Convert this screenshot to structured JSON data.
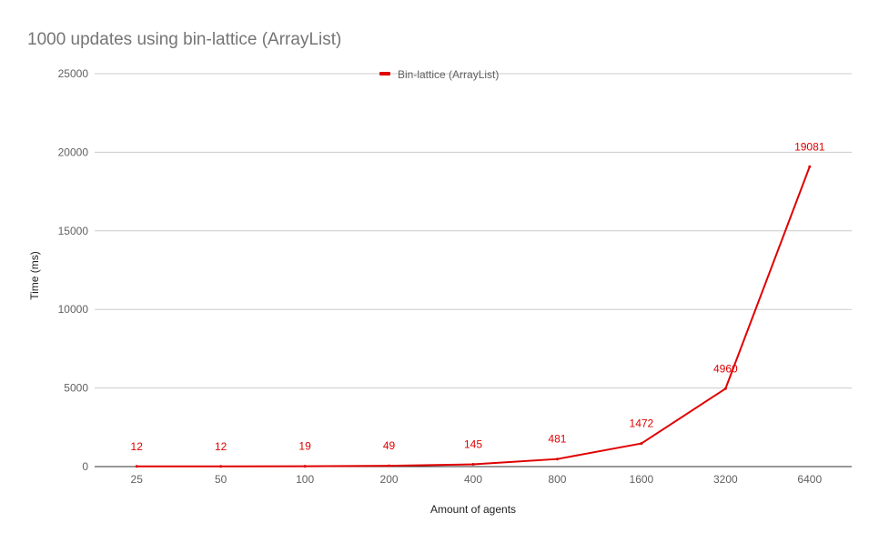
{
  "chart_data": {
    "type": "line",
    "title": "1000 updates using bin-lattice (ArrayList)",
    "xlabel": "Amount of agents",
    "ylabel": "Time (ms)",
    "categories": [
      "25",
      "50",
      "100",
      "200",
      "400",
      "800",
      "1600",
      "3200",
      "6400"
    ],
    "series": [
      {
        "name": "Bin-lattice (ArrayList)",
        "values": [
          12,
          12,
          19,
          49,
          145,
          481,
          1472,
          4960,
          19081
        ],
        "color": "#e00000"
      }
    ],
    "ylim": [
      0,
      25000
    ],
    "yticks": [
      "0",
      "5000",
      "10000",
      "15000",
      "20000",
      "25000"
    ],
    "grid": true,
    "legend_position": "top-center",
    "data_labels": true
  }
}
